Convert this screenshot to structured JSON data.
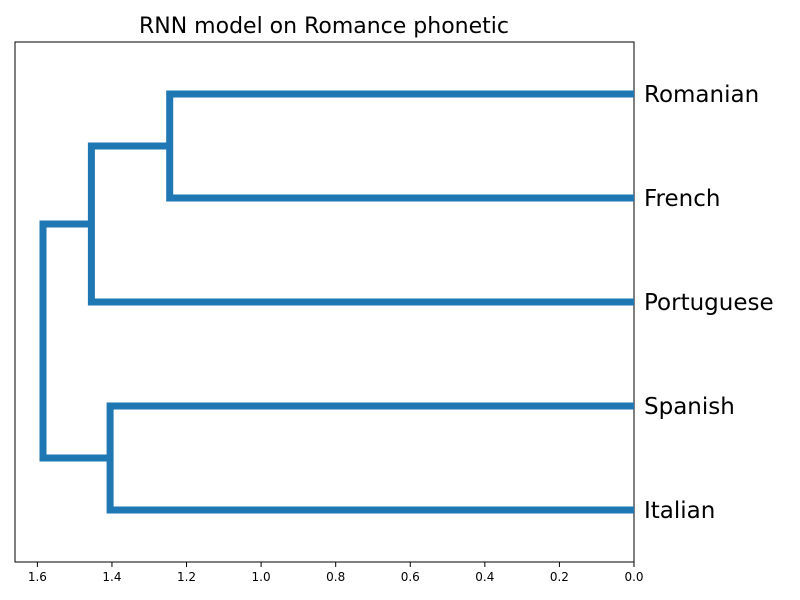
{
  "chart_data": {
    "type": "dendrogram",
    "title": "RNN model on Romance phonetic",
    "orientation": "left",
    "xlim": [
      1.66,
      0.0
    ],
    "x_ticks": [
      "1.6",
      "1.4",
      "1.2",
      "1.0",
      "0.8",
      "0.6",
      "0.4",
      "0.2",
      "0.0"
    ],
    "x_tick_values": [
      1.6,
      1.4,
      1.2,
      1.0,
      0.8,
      0.6,
      0.4,
      0.2,
      0.0
    ],
    "leaves": [
      "Romanian",
      "French",
      "Portuguese",
      "Spanish",
      "Italian"
    ],
    "merges": [
      {
        "left": "Romanian",
        "right": "French",
        "distance": 1.245
      },
      {
        "left": "Romanian+French",
        "right": "Portuguese",
        "distance": 1.455
      },
      {
        "left": "Spanish",
        "right": "Italian",
        "distance": 1.405
      },
      {
        "left": "Romanian+French+Portuguese",
        "right": "Spanish+Italian",
        "distance": 1.585
      }
    ],
    "line_color": "#1f77b4"
  }
}
